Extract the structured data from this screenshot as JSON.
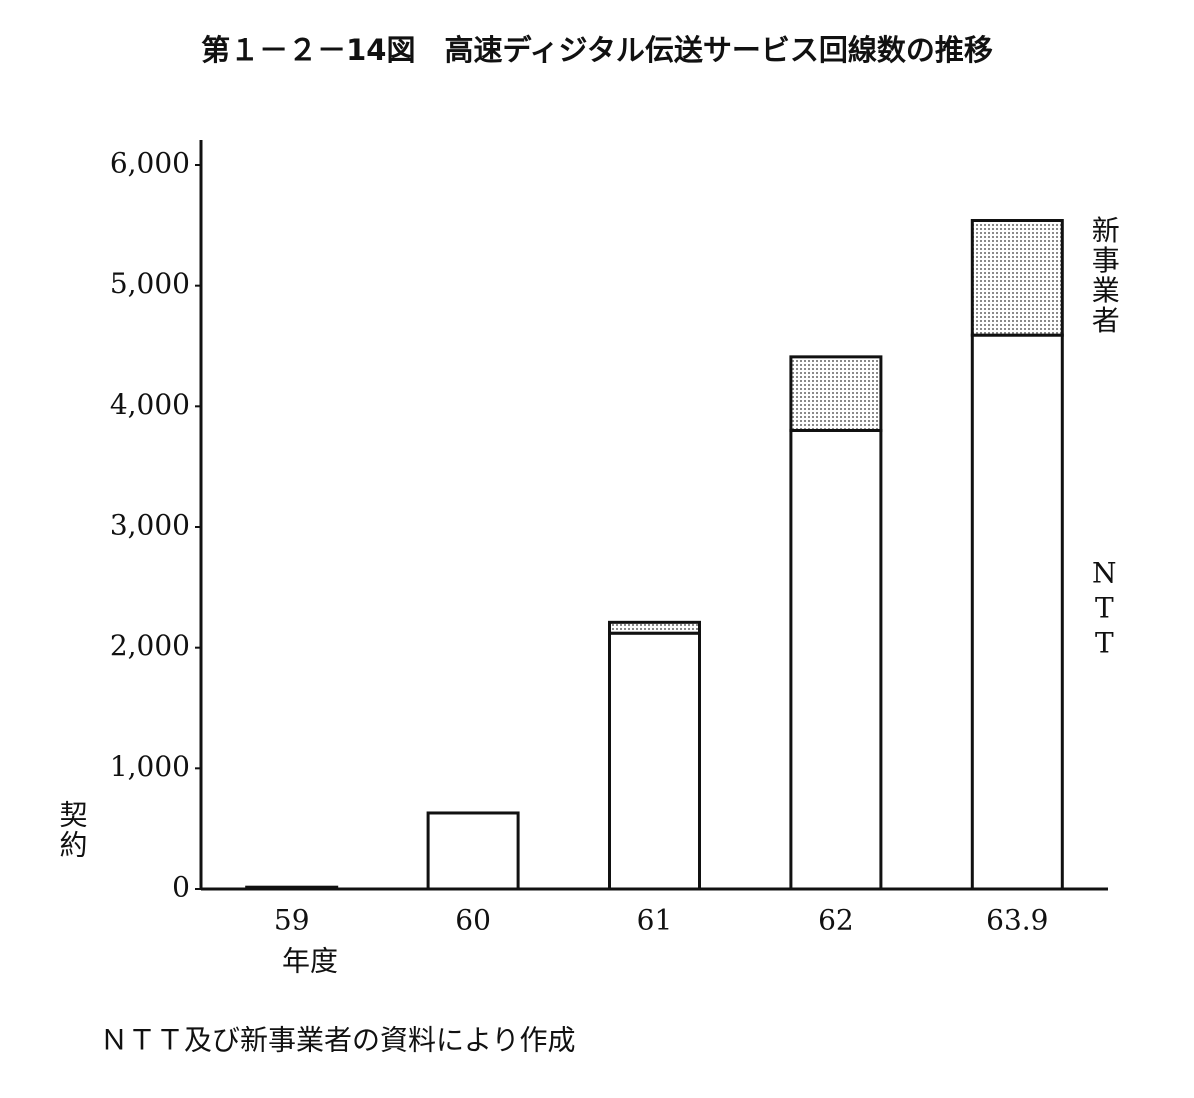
{
  "chart_data": {
    "type": "stacked-bar",
    "title": "第１－２－14図　高速ディジタル伝送サービス回線数の推移",
    "y_label": "契約",
    "x_label": "年度",
    "note": "ＮＴＴ及び新事業者の資料により作成",
    "categories": [
      "59",
      "60",
      "61",
      "62",
      "63.9"
    ],
    "series": [
      {
        "name": "NTT",
        "color": "#ffffff",
        "values": [
          15,
          630,
          2120,
          3800,
          4590
        ]
      },
      {
        "name": "新事業者",
        "color": "#8a8a8a",
        "values": [
          0,
          0,
          90,
          610,
          950
        ]
      }
    ],
    "ylim": [
      0,
      6000
    ],
    "yticks": [
      0,
      {
        "value": 1000,
        "label": "1,000"
      },
      {
        "value": 2000,
        "label": "2,000"
      },
      {
        "value": 3000,
        "label": "3,000"
      },
      {
        "value": 4000,
        "label": "4,000"
      },
      {
        "value": 5000,
        "label": "5,000"
      },
      {
        "value": 6000,
        "label": "6,000"
      }
    ],
    "grid": false
  }
}
